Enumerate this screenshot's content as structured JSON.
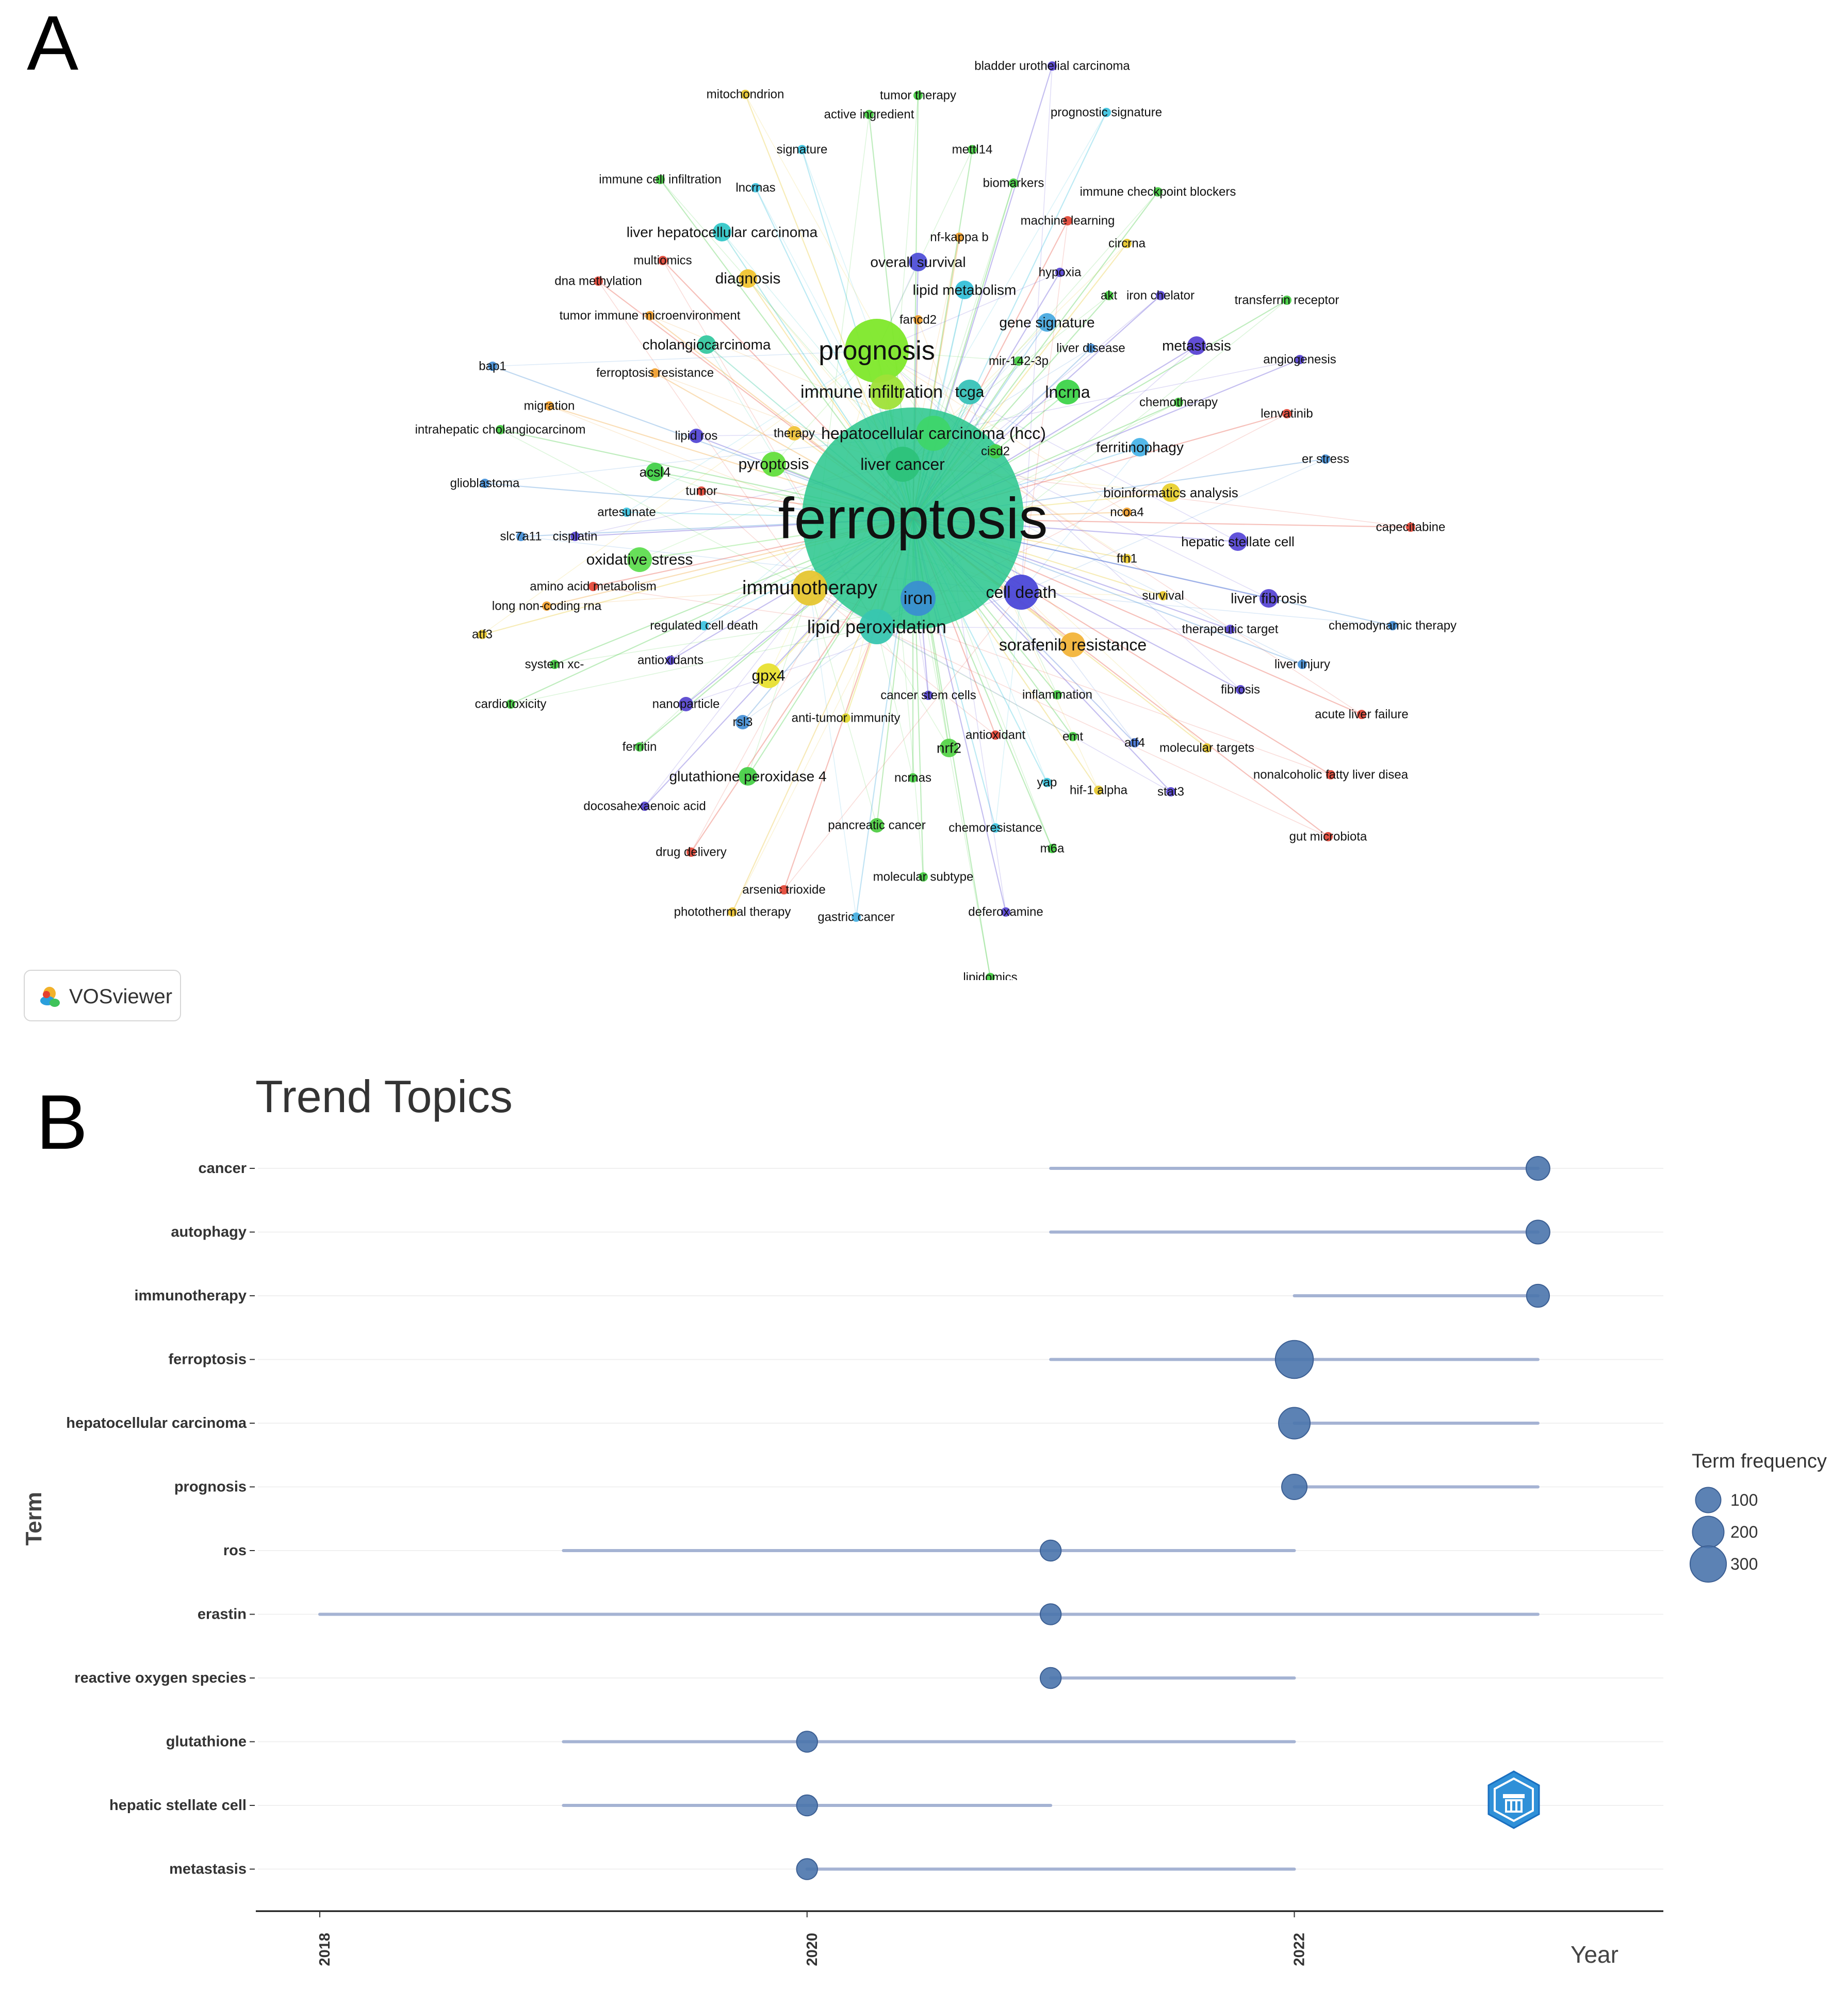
{
  "panel_a": {
    "label": "A",
    "vosviewer": {
      "logo_text": "VOSviewer",
      "icon": "vosviewer-logo-icon"
    }
  },
  "panel_b": {
    "label": "B",
    "bibliometrix_icon": "bibliometrix-logo-icon"
  },
  "chart_data": [
    {
      "type": "network",
      "title": "",
      "nodes": [
        {
          "label": "ferroptosis",
          "weight": 100,
          "color": "#27c58c"
        },
        {
          "label": "prognosis",
          "weight": 22,
          "color": "#7ee82a"
        },
        {
          "label": "hepatocellular carcinoma (hcc)",
          "weight": 14,
          "color": "#3ed56a"
        },
        {
          "label": "immune infiltration",
          "weight": 10,
          "color": "#9fe238"
        },
        {
          "label": "tcga",
          "weight": 6,
          "color": "#38c2b8"
        },
        {
          "label": "liver cancer",
          "weight": 10,
          "color": "#2dc27a"
        },
        {
          "label": "immunotherapy",
          "weight": 12,
          "color": "#e6c630"
        },
        {
          "label": "iron",
          "weight": 10,
          "color": "#3a8fd0"
        },
        {
          "label": "cell death",
          "weight": 10,
          "color": "#4b48d8"
        },
        {
          "label": "lipid peroxidation",
          "weight": 12,
          "color": "#38c6b0"
        },
        {
          "label": "sorafenib resistance",
          "weight": 8,
          "color": "#f2b43a"
        },
        {
          "label": "lncrna",
          "weight": 8,
          "color": "#3ed44a"
        },
        {
          "label": "pyroptosis",
          "weight": 7,
          "color": "#62de3c"
        },
        {
          "label": "oxidative stress",
          "weight": 7,
          "color": "#5fdd50"
        },
        {
          "label": "gpx4",
          "weight": 6,
          "color": "#e8e030"
        },
        {
          "label": "cholangiocarcinoma",
          "weight": 5,
          "color": "#36c8a0"
        },
        {
          "label": "liver hepatocellular carcinoma",
          "weight": 4,
          "color": "#34c7c8"
        },
        {
          "label": "diagnosis",
          "weight": 4,
          "color": "#f0c430"
        },
        {
          "label": "overall survival",
          "weight": 4,
          "color": "#5050d8"
        },
        {
          "label": "lipid metabolism",
          "weight": 4,
          "color": "#36c0d8"
        },
        {
          "label": "gene signature",
          "weight": 4,
          "color": "#4aaae0"
        },
        {
          "label": "metastasis",
          "weight": 4,
          "color": "#5a44d4"
        },
        {
          "label": "ferritinophagy",
          "weight": 5,
          "color": "#4ab4e8"
        },
        {
          "label": "bioinformatics analysis",
          "weight": 4,
          "color": "#e8d030"
        },
        {
          "label": "hepatic stellate cell",
          "weight": 5,
          "color": "#5a4ad8"
        },
        {
          "label": "liver fibrosis",
          "weight": 5,
          "color": "#5848d4"
        },
        {
          "label": "glutathione peroxidase 4",
          "weight": 4,
          "color": "#48d048"
        },
        {
          "label": "nrf2",
          "weight": 4,
          "color": "#56d44a"
        },
        {
          "label": "acsl4",
          "weight": 4,
          "color": "#42d048"
        },
        {
          "label": "therapy",
          "weight": 3,
          "color": "#f0c43a"
        },
        {
          "label": "cisd2",
          "weight": 3,
          "color": "#48d04a"
        },
        {
          "label": "lipid ros",
          "weight": 3,
          "color": "#5448d4"
        },
        {
          "label": "pancreatic cancer",
          "weight": 3,
          "color": "#50cc44"
        },
        {
          "label": "rsl3",
          "weight": 3,
          "color": "#4a92d8"
        },
        {
          "label": "nanoparticle",
          "weight": 3,
          "color": "#5a48d0"
        },
        {
          "label": "anti-tumor immunity",
          "weight": 2,
          "color": "#e0d830"
        },
        {
          "label": "cancer stem cells",
          "weight": 2,
          "color": "#5a48d4"
        },
        {
          "label": "inflammation",
          "weight": 2,
          "color": "#48cc48"
        },
        {
          "label": "antioxidant",
          "weight": 2,
          "color": "#e44a3a"
        },
        {
          "label": "emt",
          "weight": 2,
          "color": "#48cc44"
        },
        {
          "label": "atf4",
          "weight": 2,
          "color": "#4a78d8"
        },
        {
          "label": "molecular targets",
          "weight": 2,
          "color": "#e8c830"
        },
        {
          "label": "yap",
          "weight": 2,
          "color": "#40c8e0"
        },
        {
          "label": "hif-1 alpha",
          "weight": 2,
          "color": "#e6c830"
        },
        {
          "label": "stat3",
          "weight": 2,
          "color": "#5a48d4"
        },
        {
          "label": "ncrnas",
          "weight": 2,
          "color": "#48cc44"
        },
        {
          "label": "chemoresistance",
          "weight": 2,
          "color": "#40c4e0"
        },
        {
          "label": "m6a",
          "weight": 2,
          "color": "#48cc44"
        },
        {
          "label": "molecular subtype",
          "weight": 2,
          "color": "#48cc44"
        },
        {
          "label": "deferoxamine",
          "weight": 2,
          "color": "#5a48d4"
        },
        {
          "label": "gastric cancer",
          "weight": 2,
          "color": "#4ab0e0"
        },
        {
          "label": "photothermal therapy",
          "weight": 2,
          "color": "#e8c030"
        },
        {
          "label": "arsenic trioxide",
          "weight": 2,
          "color": "#e44a3a"
        },
        {
          "label": "drug delivery",
          "weight": 2,
          "color": "#e44a3a"
        },
        {
          "label": "lipidomics",
          "weight": 2,
          "color": "#48cc44"
        },
        {
          "label": "docosahexaenoic acid",
          "weight": 2,
          "color": "#5a48d4"
        },
        {
          "label": "ferritin",
          "weight": 2,
          "color": "#48cc44"
        },
        {
          "label": "cardiotoxicity",
          "weight": 2,
          "color": "#48cc44"
        },
        {
          "label": "system xc-",
          "weight": 2,
          "color": "#48cc44"
        },
        {
          "label": "antioxidants",
          "weight": 2,
          "color": "#5a48d4"
        },
        {
          "label": "atf3",
          "weight": 2,
          "color": "#e8c830"
        },
        {
          "label": "regulated cell death",
          "weight": 2,
          "color": "#40c4e0"
        },
        {
          "label": "long non-coding rna",
          "weight": 2,
          "color": "#f0a030"
        },
        {
          "label": "amino acid metabolism",
          "weight": 2,
          "color": "#e44a3a"
        },
        {
          "label": "slc7a11",
          "weight": 2,
          "color": "#4a92d8"
        },
        {
          "label": "cisplatin",
          "weight": 2,
          "color": "#5a48d4"
        },
        {
          "label": "artesunate",
          "weight": 2,
          "color": "#40c4e0"
        },
        {
          "label": "glioblastoma",
          "weight": 2,
          "color": "#4a92d8"
        },
        {
          "label": "tumor",
          "weight": 2,
          "color": "#e44a3a"
        },
        {
          "label": "intrahepatic cholangiocarcinom",
          "weight": 2,
          "color": "#48cc44"
        },
        {
          "label": "migration",
          "weight": 2,
          "color": "#f0a030"
        },
        {
          "label": "ferroptosis resistance",
          "weight": 2,
          "color": "#f0a030"
        },
        {
          "label": "bap1",
          "weight": 2,
          "color": "#4a92d8"
        },
        {
          "label": "tumor immune microenvironment",
          "weight": 2,
          "color": "#f0a030"
        },
        {
          "label": "dna methylation",
          "weight": 2,
          "color": "#e44a3a"
        },
        {
          "label": "multiomics",
          "weight": 2,
          "color": "#e44a3a"
        },
        {
          "label": "immune cell infiltration",
          "weight": 2,
          "color": "#48cc44"
        },
        {
          "label": "lncrnas",
          "weight": 2,
          "color": "#40c4e0"
        },
        {
          "label": "signature",
          "weight": 2,
          "color": "#40c4e0"
        },
        {
          "label": "mitochondrion",
          "weight": 2,
          "color": "#e8c830"
        },
        {
          "label": "active ingredient",
          "weight": 2,
          "color": "#48cc44"
        },
        {
          "label": "tumor therapy",
          "weight": 2,
          "color": "#48cc44"
        },
        {
          "label": "bladder urothelial carcinoma",
          "weight": 2,
          "color": "#5a48d4"
        },
        {
          "label": "prognostic signature",
          "weight": 2,
          "color": "#40c4e0"
        },
        {
          "label": "mettl14",
          "weight": 2,
          "color": "#48cc44"
        },
        {
          "label": "biomarkers",
          "weight": 2,
          "color": "#48cc44"
        },
        {
          "label": "immune checkpoint blockers",
          "weight": 2,
          "color": "#48cc44"
        },
        {
          "label": "nf-kappa b",
          "weight": 2,
          "color": "#f0a030"
        },
        {
          "label": "machine learning",
          "weight": 2,
          "color": "#e44a3a"
        },
        {
          "label": "circrna",
          "weight": 2,
          "color": "#e8c830"
        },
        {
          "label": "hypoxia",
          "weight": 2,
          "color": "#5a48d4"
        },
        {
          "label": "akt",
          "weight": 2,
          "color": "#48cc44"
        },
        {
          "label": "iron chelator",
          "weight": 2,
          "color": "#5a48d4"
        },
        {
          "label": "transferrin receptor",
          "weight": 2,
          "color": "#48cc44"
        },
        {
          "label": "fancd2",
          "weight": 2,
          "color": "#f0a030"
        },
        {
          "label": "liver disease",
          "weight": 2,
          "color": "#4a92d8"
        },
        {
          "label": "mir-142-3p",
          "weight": 2,
          "color": "#48cc44"
        },
        {
          "label": "angiogenesis",
          "weight": 2,
          "color": "#5a48d4"
        },
        {
          "label": "chemotherapy",
          "weight": 2,
          "color": "#48cc44"
        },
        {
          "label": "lenvatinib",
          "weight": 2,
          "color": "#e44a3a"
        },
        {
          "label": "er stress",
          "weight": 2,
          "color": "#4a92d8"
        },
        {
          "label": "capecitabine",
          "weight": 2,
          "color": "#e44a3a"
        },
        {
          "label": "ncoa4",
          "weight": 2,
          "color": "#f0a030"
        },
        {
          "label": "fth1",
          "weight": 2,
          "color": "#e8c830"
        },
        {
          "label": "survival",
          "weight": 2,
          "color": "#e8c830"
        },
        {
          "label": "therapeutic target",
          "weight": 2,
          "color": "#5a48d4"
        },
        {
          "label": "chemodynamic therapy",
          "weight": 2,
          "color": "#4a92d8"
        },
        {
          "label": "liver injury",
          "weight": 2,
          "color": "#4a92d8"
        },
        {
          "label": "fibrosis",
          "weight": 2,
          "color": "#5a48d4"
        },
        {
          "label": "acute liver failure",
          "weight": 2,
          "color": "#e44a3a"
        },
        {
          "label": "nonalcoholic fatty liver disea",
          "weight": 2,
          "color": "#e44a3a"
        },
        {
          "label": "gut microbiota",
          "weight": 2,
          "color": "#e44a3a"
        }
      ]
    },
    {
      "type": "scatter",
      "title": "Trend Topics",
      "xlabel": "Year",
      "ylabel": "Term",
      "xlim": [
        2018,
        2023.25
      ],
      "xticks": [
        2018,
        2020,
        2022
      ],
      "categories": [
        "cancer",
        "autophagy",
        "immunotherapy",
        "ferroptosis",
        "hepatocellular carcinoma",
        "prognosis",
        "ros",
        "erastin",
        "reactive oxygen species",
        "glutathione",
        "hepatic stellate cell",
        "metastasis"
      ],
      "series": [
        {
          "term": "cancer",
          "q1": 2021,
          "median": 2023,
          "q3": 2023,
          "freq": 80
        },
        {
          "term": "autophagy",
          "q1": 2021,
          "median": 2023,
          "q3": 2023,
          "freq": 80
        },
        {
          "term": "immunotherapy",
          "q1": 2022,
          "median": 2023,
          "q3": 2023,
          "freq": 70
        },
        {
          "term": "ferroptosis",
          "q1": 2021,
          "median": 2022,
          "q3": 2023,
          "freq": 340
        },
        {
          "term": "hepatocellular carcinoma",
          "q1": 2022,
          "median": 2022,
          "q3": 2023,
          "freq": 200
        },
        {
          "term": "prognosis",
          "q1": 2022,
          "median": 2022,
          "q3": 2023,
          "freq": 100
        },
        {
          "term": "ros",
          "q1": 2019,
          "median": 2021,
          "q3": 2022,
          "freq": 50
        },
        {
          "term": "erastin",
          "q1": 2018,
          "median": 2021,
          "q3": 2023,
          "freq": 50
        },
        {
          "term": "reactive oxygen species",
          "q1": 2021,
          "median": 2021,
          "q3": 2022,
          "freq": 50
        },
        {
          "term": "glutathione",
          "q1": 2019,
          "median": 2020,
          "q3": 2022,
          "freq": 50
        },
        {
          "term": "hepatic stellate cell",
          "q1": 2019,
          "median": 2020,
          "q3": 2021,
          "freq": 50
        },
        {
          "term": "metastasis",
          "q1": 2020,
          "median": 2020,
          "q3": 2022,
          "freq": 50
        }
      ],
      "legend": {
        "title": "Term frequency",
        "entries": [
          100,
          200,
          300
        ],
        "placement": "right"
      },
      "colors": {
        "point": "#4a74ac",
        "range": "#a5b3d3"
      },
      "grid": false
    }
  ]
}
